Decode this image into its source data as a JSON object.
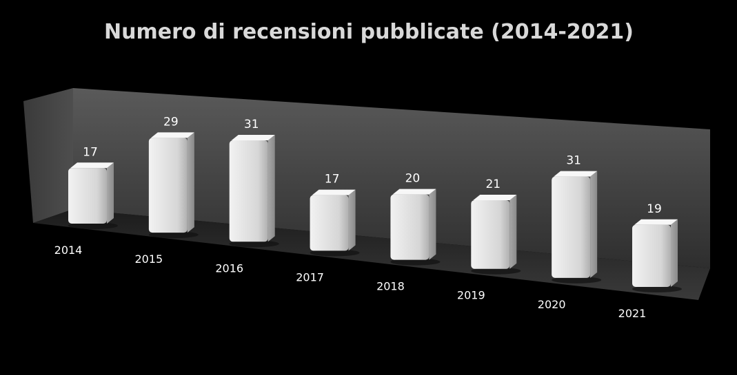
{
  "chart_data": {
    "type": "bar",
    "title": "Numero di recensioni pubblicate (2014-2021)",
    "categories": [
      "2014",
      "2015",
      "2016",
      "2017",
      "2018",
      "2019",
      "2020",
      "2021"
    ],
    "values": [
      17,
      29,
      31,
      17,
      20,
      21,
      31,
      19
    ],
    "xlabel": "",
    "ylabel": "",
    "ylim": [
      0,
      35
    ],
    "grid": false,
    "legend": "none",
    "style": "3d-perspective",
    "colors": {
      "background": "#000000",
      "bar": "#d9d9d9",
      "text": "#ffffff",
      "title": "#d9d9d9",
      "wall": "#4a4a4a",
      "floor": "#2a2a2a"
    }
  }
}
